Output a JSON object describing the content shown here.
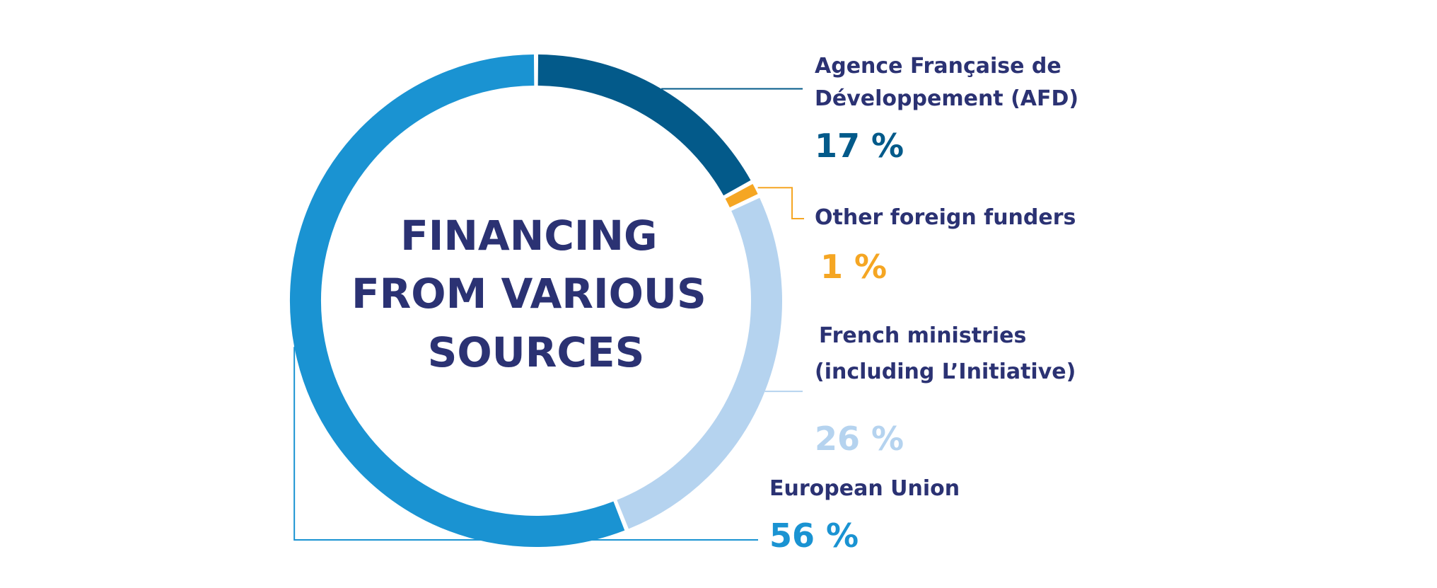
{
  "chart_data": {
    "type": "pie",
    "title": "FINANCING FROM VARIOUS SOURCES",
    "title_lines": [
      "FINANCING",
      "FROM VARIOUS",
      "SOURCES"
    ],
    "series": [
      {
        "name": "Agence Française de Développement (AFD)",
        "name_lines": [
          "Agence Française de",
          "Développement (AFD)"
        ],
        "value": 17,
        "value_label": "17 %",
        "color": "#035a8a"
      },
      {
        "name": "Other foreign funders",
        "name_lines": [
          "Other foreign funders"
        ],
        "value": 1,
        "value_label": "1 %",
        "color": "#f5a623"
      },
      {
        "name": "French ministries (including L'Initiative)",
        "name_lines": [
          "French ministries",
          "(including L’Initiative)"
        ],
        "value": 26,
        "value_label": "26 %",
        "color": "#b5d3ef"
      },
      {
        "name": "European Union",
        "name_lines": [
          "European Union"
        ],
        "value": 56,
        "value_label": "56 %",
        "color": "#1a93d2"
      }
    ],
    "legend": "right",
    "grid": false
  }
}
